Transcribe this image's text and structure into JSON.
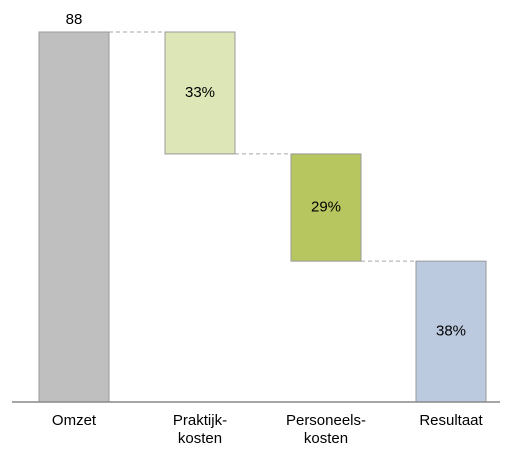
{
  "chart_data": {
    "type": "waterfall",
    "categories": [
      "Omzet",
      "Praktijk-\nkosten",
      "Personeels-\nkosten",
      "Resultaat"
    ],
    "values": [
      88,
      29,
      25.5,
      33.5
    ],
    "value_labels": [
      "88",
      "33%",
      "29%",
      "38%"
    ],
    "colors": [
      "#bfbfbf",
      "#dde6b6",
      "#b8c660",
      "#bccadf"
    ]
  }
}
